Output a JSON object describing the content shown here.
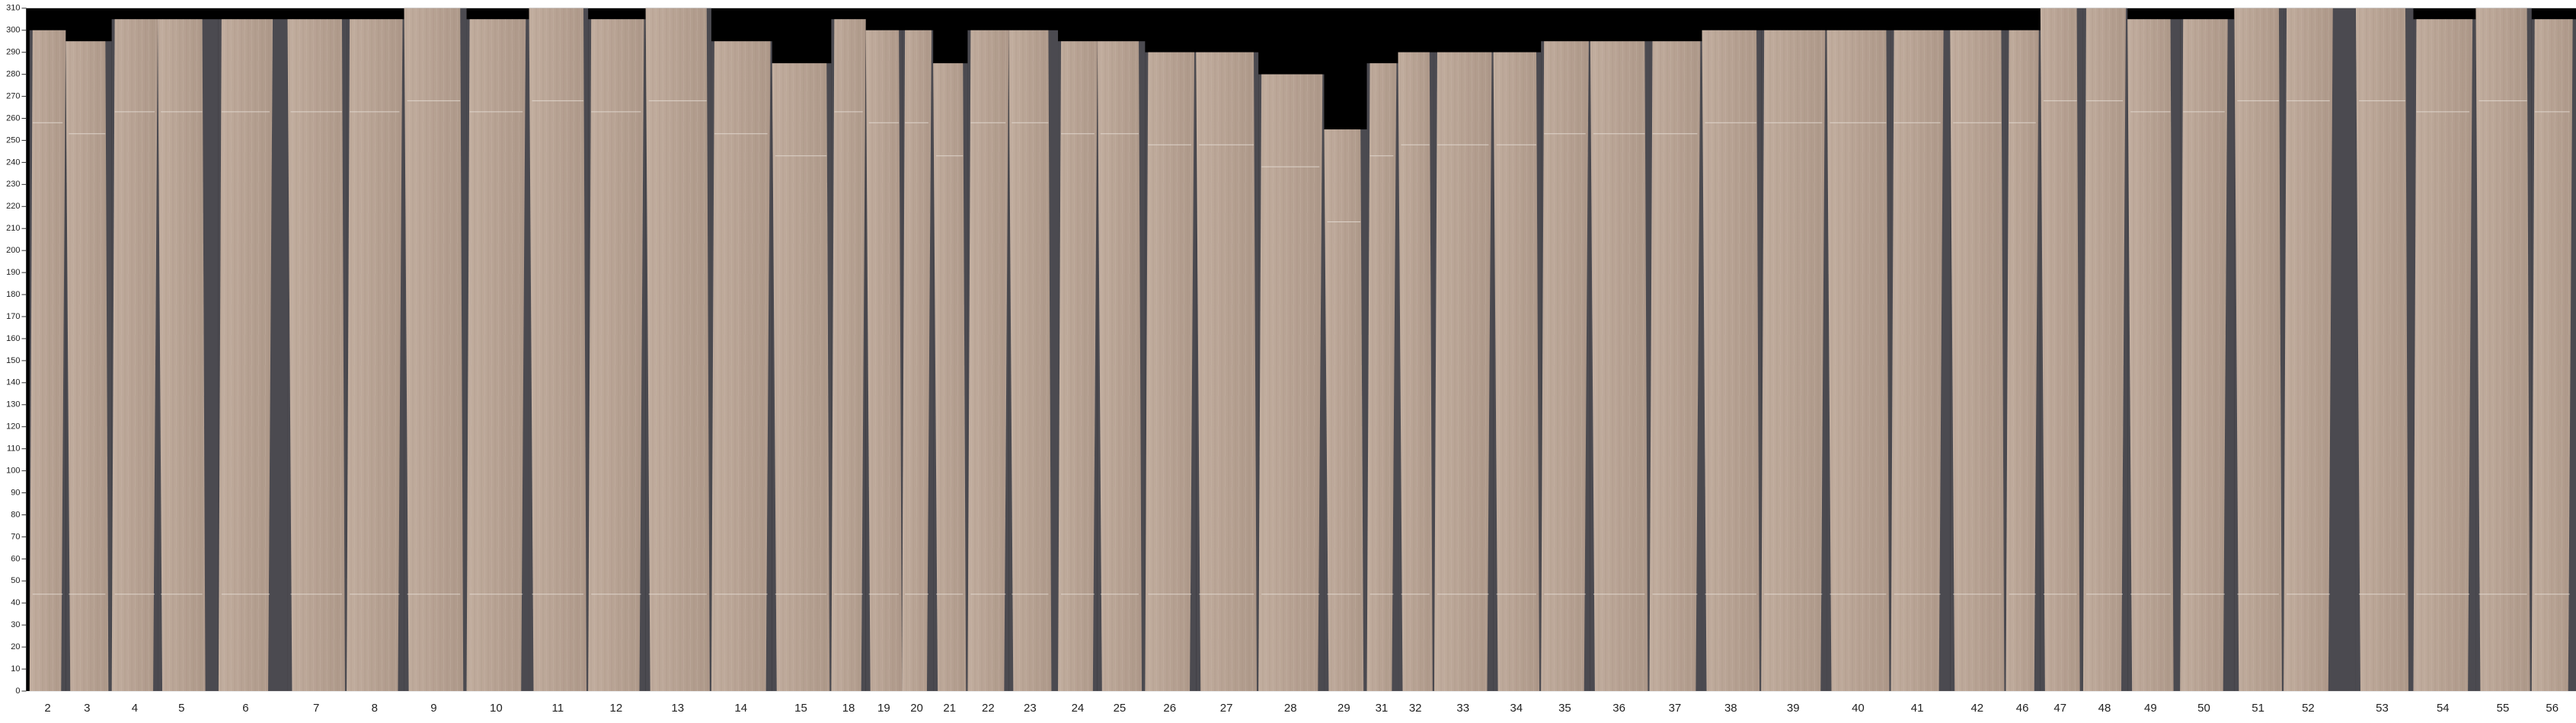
{
  "chart_data": {
    "type": "veneer",
    "categories": [
      "2",
      "3",
      "4",
      "5",
      "6",
      "7",
      "8",
      "9",
      "10",
      "11",
      "12",
      "13",
      "14",
      "15",
      "18",
      "19",
      "20",
      "21",
      "22",
      "23",
      "24",
      "25",
      "26",
      "27",
      "28",
      "29",
      "31",
      "32",
      "33",
      "34",
      "35",
      "36",
      "37",
      "38",
      "39",
      "40",
      "41",
      "42",
      "46",
      "47",
      "48",
      "49",
      "50",
      "51",
      "52",
      "53",
      "54",
      "55",
      "56"
    ],
    "values": [
      300,
      295,
      305,
      305,
      305,
      305,
      305,
      310,
      305,
      310,
      305,
      310,
      295,
      285,
      305,
      300,
      300,
      285,
      300,
      300,
      295,
      295,
      290,
      290,
      280,
      255,
      285,
      290,
      290,
      290,
      295,
      295,
      295,
      300,
      300,
      300,
      300,
      300,
      300,
      310,
      310,
      305,
      305,
      310,
      310,
      310,
      305,
      310,
      305
    ],
    "color": "#b9a596",
    "ylim": [
      0,
      310
    ],
    "yticks": [
      0,
      10,
      20,
      30,
      40,
      50,
      60,
      70,
      80,
      90,
      100,
      110,
      120,
      130,
      140,
      150,
      160,
      170,
      180,
      190,
      200,
      210,
      220,
      230,
      240,
      250,
      260,
      270,
      280,
      290,
      300,
      310
    ]
  }
}
